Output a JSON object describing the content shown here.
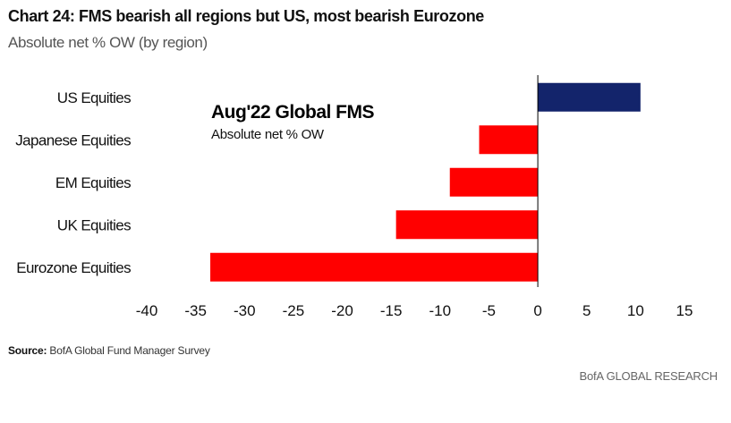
{
  "header": {
    "title": "Chart 24: FMS bearish all regions but US, most bearish Eurozone",
    "subtitle": "Absolute net % OW (by region)"
  },
  "footer": {
    "source_label": "Source:",
    "source_text": "BofA Global Fund Manager Survey",
    "brand": "BofA GLOBAL RESEARCH"
  },
  "chart_data": {
    "type": "bar",
    "orientation": "horizontal",
    "categories": [
      "US Equities",
      "Japanese Equities",
      "EM Equities",
      "UK Equities",
      "Eurozone Equities"
    ],
    "values": [
      10.5,
      -6,
      -9,
      -14.5,
      -33.5
    ],
    "colors": {
      "positive": "#13246b",
      "negative": "#ff0000",
      "axis": "#000000"
    },
    "xlim": [
      -40,
      15
    ],
    "xticks": [
      -40,
      -35,
      -30,
      -25,
      -20,
      -15,
      -10,
      -5,
      0,
      5,
      10,
      15
    ],
    "xlabel": "",
    "ylabel": "",
    "grid": false,
    "annotation": {
      "title": "Aug'22 Global FMS",
      "subtitle": "Absolute net % OW"
    }
  }
}
